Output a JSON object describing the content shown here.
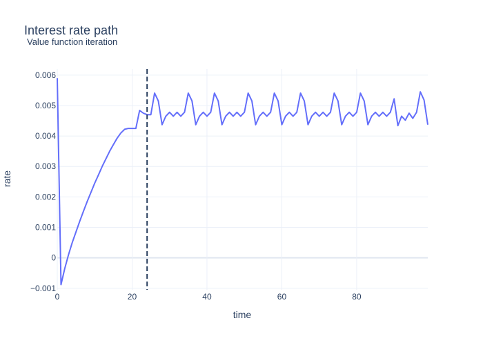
{
  "chart_data": {
    "type": "line",
    "title": "Interest rate path",
    "subtitle": "Value function iteration",
    "xlabel": "time",
    "ylabel": "rate",
    "xlim": [
      0,
      99
    ],
    "ylim": [
      -0.00105,
      0.0062
    ],
    "x_ticks": [
      0,
      20,
      40,
      60,
      80
    ],
    "y_ticks": [
      -0.001,
      0,
      0.001,
      0.002,
      0.003,
      0.004,
      0.005,
      0.006
    ],
    "y_tick_labels": [
      "−0.001",
      "0",
      "0.001",
      "0.002",
      "0.003",
      "0.004",
      "0.005",
      "0.006"
    ],
    "grid": true,
    "line_color": "#636efa",
    "vline": {
      "x": 24,
      "style": "dashed",
      "color": "#2a3f5f"
    },
    "series": [
      {
        "values": [
          [
            0,
            0.0059
          ],
          [
            1,
            -0.00088
          ],
          [
            2,
            -0.00035
          ],
          [
            3,
            0.0001
          ],
          [
            4,
            0.0005
          ],
          [
            5,
            0.00085
          ],
          [
            6,
            0.0012
          ],
          [
            7,
            0.00153
          ],
          [
            8,
            0.00185
          ],
          [
            9,
            0.00215
          ],
          [
            10,
            0.00245
          ],
          [
            11,
            0.00272
          ],
          [
            12,
            0.003
          ],
          [
            13,
            0.00325
          ],
          [
            14,
            0.0035
          ],
          [
            15,
            0.00372
          ],
          [
            16,
            0.00393
          ],
          [
            17,
            0.0041
          ],
          [
            18,
            0.00422
          ],
          [
            19,
            0.00425
          ],
          [
            20,
            0.00425
          ],
          [
            21,
            0.00425
          ],
          [
            22,
            0.00484
          ],
          [
            23,
            0.00475
          ],
          [
            24,
            0.0047
          ],
          [
            25,
            0.0047
          ],
          [
            26,
            0.00541
          ],
          [
            27,
            0.00515
          ],
          [
            28,
            0.00437
          ],
          [
            29,
            0.00465
          ],
          [
            30,
            0.00478
          ],
          [
            31,
            0.00465
          ],
          [
            32,
            0.00478
          ],
          [
            33,
            0.00465
          ],
          [
            34,
            0.00478
          ],
          [
            35,
            0.00541
          ],
          [
            36,
            0.00515
          ],
          [
            37,
            0.00437
          ],
          [
            38,
            0.00465
          ],
          [
            39,
            0.00478
          ],
          [
            40,
            0.00465
          ],
          [
            41,
            0.00478
          ],
          [
            42,
            0.00541
          ],
          [
            43,
            0.00515
          ],
          [
            44,
            0.00437
          ],
          [
            45,
            0.00465
          ],
          [
            46,
            0.00478
          ],
          [
            47,
            0.00465
          ],
          [
            48,
            0.00478
          ],
          [
            49,
            0.00465
          ],
          [
            50,
            0.00478
          ],
          [
            51,
            0.00541
          ],
          [
            52,
            0.00515
          ],
          [
            53,
            0.00437
          ],
          [
            54,
            0.00465
          ],
          [
            55,
            0.00478
          ],
          [
            56,
            0.00465
          ],
          [
            57,
            0.00478
          ],
          [
            58,
            0.00541
          ],
          [
            59,
            0.00515
          ],
          [
            60,
            0.00437
          ],
          [
            61,
            0.00465
          ],
          [
            62,
            0.00478
          ],
          [
            63,
            0.00465
          ],
          [
            64,
            0.00478
          ],
          [
            65,
            0.00541
          ],
          [
            66,
            0.00515
          ],
          [
            67,
            0.00437
          ],
          [
            68,
            0.00465
          ],
          [
            69,
            0.00478
          ],
          [
            70,
            0.00465
          ],
          [
            71,
            0.00478
          ],
          [
            72,
            0.00465
          ],
          [
            73,
            0.00478
          ],
          [
            74,
            0.00541
          ],
          [
            75,
            0.00515
          ],
          [
            76,
            0.00437
          ],
          [
            77,
            0.00465
          ],
          [
            78,
            0.00478
          ],
          [
            79,
            0.00465
          ],
          [
            80,
            0.00478
          ],
          [
            81,
            0.00541
          ],
          [
            82,
            0.00515
          ],
          [
            83,
            0.00437
          ],
          [
            84,
            0.00465
          ],
          [
            85,
            0.00478
          ],
          [
            86,
            0.00465
          ],
          [
            87,
            0.00478
          ],
          [
            88,
            0.00465
          ],
          [
            89,
            0.00478
          ],
          [
            90,
            0.00522
          ],
          [
            91,
            0.00434
          ],
          [
            92,
            0.00465
          ],
          [
            93,
            0.00452
          ],
          [
            94,
            0.00475
          ],
          [
            95,
            0.00458
          ],
          [
            96,
            0.00478
          ],
          [
            97,
            0.00545
          ],
          [
            98,
            0.00518
          ],
          [
            99,
            0.00437
          ]
        ]
      }
    ]
  }
}
